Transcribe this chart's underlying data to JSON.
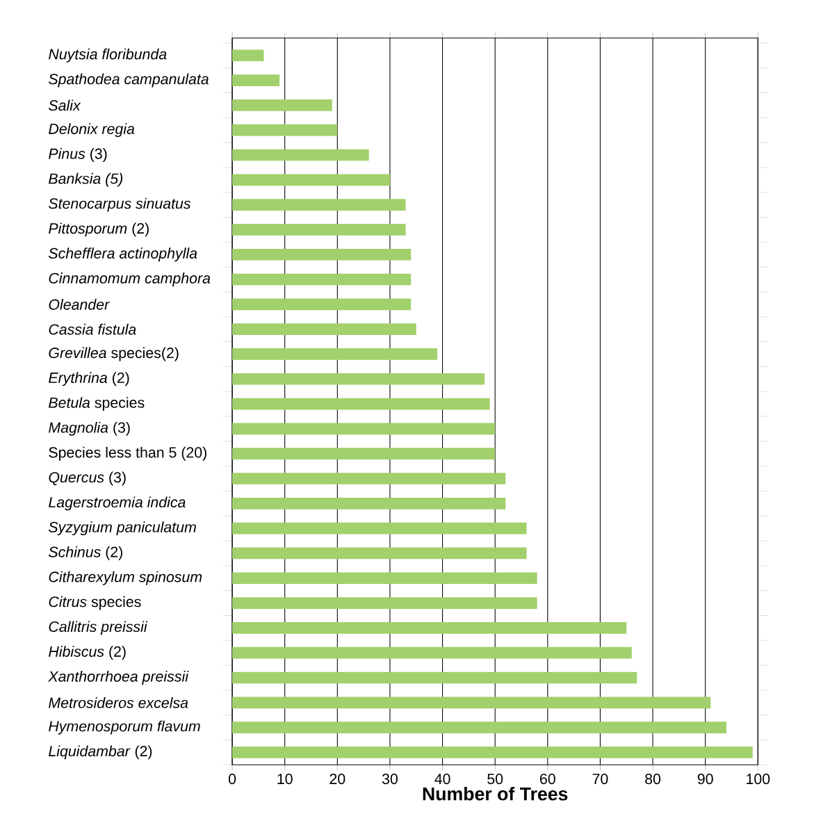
{
  "chart_data": {
    "type": "bar",
    "orientation": "horizontal",
    "xlabel": "Number of Trees",
    "categories": [
      "*Nuytsia floribunda*",
      "*Spathodea campanulata*",
      "*Salix*",
      "*Delonix regia*",
      "*Pinus* (3)",
      "*Banksia (5)*",
      "*Stenocarpus sinuatus*",
      "*Pittosporum* (2)",
      "*Schefflera actinophylla*",
      "*Cinnamomum camphora*",
      "*Oleander*",
      "*Cassia fistula*",
      "*Grevillea* species(2)",
      "*Erythrina* (2)",
      "*Betula* species",
      "*Magnolia* (3)",
      "Species less than 5 (20)",
      "*Quercus* (3)",
      "*Lagerstroemia indica*",
      "*Syzygium paniculatum*",
      "*Schinus* (2)",
      "*Citharexylum spinosum*",
      "*Citrus* species",
      "*Callitris preissii*",
      "*Hibiscus* (2)",
      "*Xanthorrhoea preissii*",
      "*Metrosideros excelsa*",
      "*Hymenosporum flavum*",
      "*Liquidambar* (2)"
    ],
    "values": [
      6,
      9,
      19,
      20,
      26,
      30,
      33,
      33,
      34,
      34,
      34,
      35,
      39,
      48,
      49,
      50,
      50,
      52,
      52,
      56,
      56,
      58,
      58,
      75,
      76,
      77,
      91,
      94,
      99
    ],
    "color": "#a2d06c",
    "xlim": [
      0,
      100
    ],
    "xticks": [
      0,
      10,
      20,
      30,
      40,
      50,
      60,
      70,
      80,
      90,
      100
    ],
    "grid": "x"
  }
}
